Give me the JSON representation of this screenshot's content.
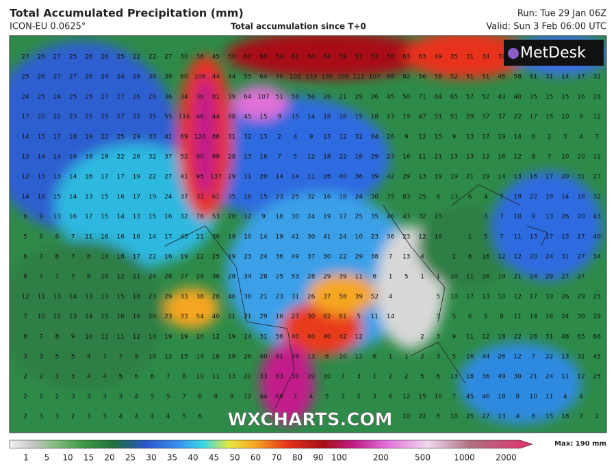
{
  "header": {
    "title": "Total Accumulated Precipitation (mm)",
    "model": "ICON-EU 0.0625°",
    "subtitle": "Total accumulation since T+0",
    "run": "Run: Tue 29 Jan 06Z",
    "valid": "Valid: Sun 3 Feb 06:00 UTC"
  },
  "logo": "MetDesk",
  "watermark": "WXCHARTS.COM",
  "grid_values": [
    [
      27,
      26,
      27,
      25,
      26,
      26,
      25,
      22,
      22,
      27,
      30,
      36,
      45,
      50,
      60,
      60,
      54,
      61,
      60,
      64,
      59,
      57,
      53,
      56,
      63,
      63,
      49,
      35,
      31,
      34,
      39,
      52
    ],
    [
      25,
      26,
      27,
      27,
      26,
      24,
      24,
      26,
      30,
      39,
      60,
      106,
      44,
      44,
      55,
      64,
      70,
      102,
      133,
      130,
      109,
      111,
      107,
      98,
      82,
      56,
      58,
      52,
      51,
      51,
      46,
      58,
      81,
      31,
      14,
      17,
      31
    ],
    [
      24,
      25,
      24,
      25,
      25,
      27,
      27,
      26,
      28,
      36,
      34,
      36,
      81,
      39,
      64,
      107,
      51,
      58,
      56,
      26,
      21,
      29,
      26,
      45,
      50,
      71,
      64,
      65,
      57,
      52,
      43,
      40,
      35,
      15,
      15,
      16,
      28
    ],
    [
      17,
      20,
      22,
      23,
      25,
      25,
      27,
      32,
      35,
      55,
      116,
      46,
      44,
      98,
      45,
      15,
      9,
      15,
      14,
      18,
      18,
      15,
      18,
      17,
      19,
      47,
      51,
      51,
      29,
      37,
      37,
      22,
      17,
      15,
      10,
      8,
      12
    ],
    [
      14,
      15,
      17,
      18,
      19,
      22,
      25,
      29,
      33,
      41,
      69,
      120,
      86,
      31,
      32,
      13,
      2,
      4,
      9,
      13,
      12,
      32,
      64,
      26,
      9,
      12,
      15,
      9,
      13,
      17,
      19,
      14,
      6,
      2,
      3,
      4,
      7
    ],
    [
      12,
      14,
      14,
      16,
      18,
      19,
      22,
      26,
      32,
      37,
      52,
      90,
      99,
      28,
      13,
      16,
      7,
      5,
      12,
      18,
      22,
      18,
      29,
      23,
      16,
      11,
      21,
      13,
      13,
      12,
      16,
      12,
      8,
      7,
      10,
      20,
      11
    ],
    [
      12,
      13,
      13,
      14,
      16,
      17,
      17,
      19,
      22,
      27,
      41,
      95,
      137,
      29,
      11,
      20,
      14,
      14,
      11,
      26,
      40,
      36,
      39,
      42,
      29,
      13,
      19,
      19,
      21,
      19,
      14,
      13,
      16,
      17,
      20,
      31,
      27
    ],
    [
      14,
      18,
      15,
      14,
      13,
      15,
      16,
      17,
      19,
      24,
      37,
      31,
      61,
      35,
      16,
      15,
      23,
      25,
      32,
      16,
      18,
      24,
      30,
      35,
      83,
      25,
      6,
      13,
      6,
      4,
      7,
      19,
      22,
      19,
      14,
      18,
      32
    ],
    [
      6,
      9,
      13,
      16,
      17,
      15,
      14,
      13,
      15,
      16,
      32,
      78,
      53,
      20,
      12,
      9,
      18,
      30,
      24,
      19,
      17,
      25,
      35,
      46,
      43,
      32,
      15,
      null,
      null,
      3,
      7,
      10,
      9,
      13,
      26,
      20,
      43
    ],
    [
      5,
      6,
      6,
      7,
      11,
      16,
      16,
      16,
      14,
      17,
      43,
      21,
      36,
      19,
      10,
      14,
      19,
      41,
      30,
      41,
      24,
      10,
      23,
      36,
      23,
      12,
      10,
      null,
      1,
      5,
      7,
      11,
      13,
      17,
      13,
      17,
      40
    ],
    [
      6,
      7,
      6,
      7,
      8,
      14,
      18,
      17,
      22,
      16,
      19,
      22,
      25,
      19,
      23,
      24,
      36,
      49,
      37,
      30,
      22,
      29,
      38,
      7,
      13,
      4,
      null,
      2,
      6,
      16,
      12,
      12,
      20,
      24,
      31,
      27,
      34
    ],
    [
      8,
      7,
      7,
      7,
      8,
      10,
      12,
      21,
      24,
      28,
      27,
      29,
      36,
      28,
      34,
      28,
      25,
      53,
      28,
      29,
      39,
      11,
      6,
      1,
      5,
      1,
      1,
      10,
      11,
      16,
      19,
      21,
      24,
      29,
      27,
      27
    ],
    [
      12,
      11,
      13,
      14,
      13,
      13,
      15,
      18,
      23,
      29,
      33,
      38,
      28,
      46,
      38,
      21,
      23,
      31,
      26,
      37,
      58,
      39,
      52,
      4,
      null,
      null,
      5,
      10,
      17,
      13,
      10,
      12,
      17,
      19,
      26,
      29,
      25
    ],
    [
      7,
      10,
      12,
      13,
      14,
      15,
      16,
      16,
      20,
      23,
      33,
      54,
      40,
      21,
      21,
      29,
      16,
      27,
      30,
      62,
      61,
      5,
      11,
      14,
      null,
      null,
      3,
      5,
      6,
      5,
      8,
      11,
      14,
      16,
      24,
      30,
      29
    ],
    [
      6,
      7,
      8,
      9,
      10,
      11,
      11,
      12,
      14,
      19,
      19,
      20,
      12,
      19,
      24,
      31,
      56,
      40,
      40,
      40,
      42,
      12,
      null,
      null,
      null,
      2,
      3,
      9,
      11,
      12,
      18,
      22,
      28,
      31,
      48,
      65,
      66
    ],
    [
      3,
      3,
      5,
      5,
      4,
      7,
      7,
      9,
      10,
      12,
      15,
      14,
      16,
      19,
      26,
      40,
      91,
      39,
      13,
      8,
      10,
      11,
      6,
      1,
      1,
      2,
      3,
      5,
      16,
      44,
      26,
      12,
      7,
      22,
      13,
      31,
      45
    ],
    [
      2,
      2,
      3,
      3,
      4,
      4,
      5,
      6,
      6,
      7,
      8,
      10,
      11,
      13,
      20,
      33,
      83,
      39,
      20,
      10,
      7,
      3,
      1,
      2,
      2,
      5,
      6,
      13,
      18,
      36,
      49,
      30,
      21,
      24,
      11,
      12,
      25
    ],
    [
      2,
      2,
      2,
      3,
      3,
      3,
      3,
      4,
      5,
      5,
      7,
      6,
      8,
      9,
      12,
      44,
      68,
      7,
      4,
      5,
      3,
      2,
      3,
      6,
      12,
      15,
      10,
      7,
      45,
      46,
      18,
      8,
      10,
      11,
      4,
      4
    ],
    [
      2,
      3,
      3,
      2,
      3,
      3,
      4,
      4,
      4,
      4,
      5,
      6,
      null,
      null,
      null,
      null,
      null,
      null,
      null,
      null,
      null,
      null,
      null,
      null,
      10,
      22,
      8,
      10,
      25,
      27,
      13,
      4,
      8,
      15,
      18,
      7,
      2
    ]
  ],
  "legend": {
    "labels": [
      "1",
      "5",
      "10",
      "15",
      "20",
      "25",
      "30",
      "35",
      "40",
      "45",
      "50",
      "60",
      "70",
      "80",
      "90",
      "100",
      "200",
      "500",
      "1000",
      "2000"
    ],
    "max": "Max: 190 mm"
  }
}
